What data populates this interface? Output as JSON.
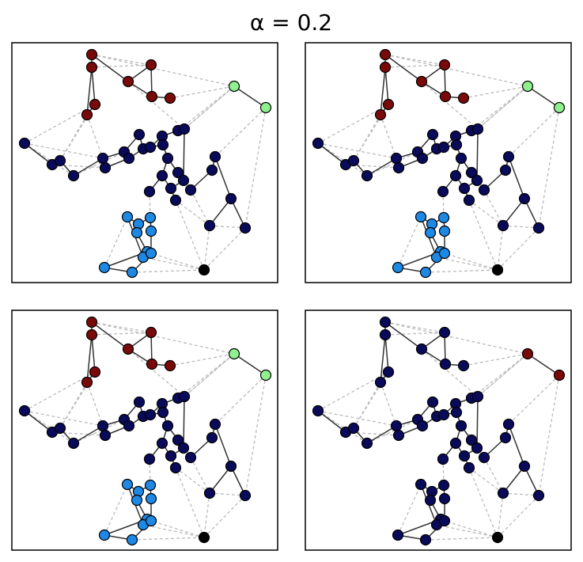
{
  "title": "α = 0.2"
}
